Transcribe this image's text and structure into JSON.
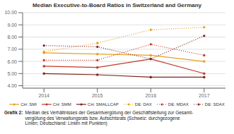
{
  "chart_data": {
    "type": "line",
    "title": "Median Executive-to-Board Ratios in Switzerland and Germany",
    "x": [
      2014,
      2015,
      2016,
      2017
    ],
    "xlim": [
      2013.6,
      2017.4
    ],
    "xticks": [
      2014,
      2015,
      2016,
      2017
    ],
    "series": [
      {
        "name": "CH: SMI",
        "color": "#E8A020",
        "line_style": "solid",
        "marker": "circle",
        "values": [
          6.7,
          6.6,
          6.5,
          6.0
        ]
      },
      {
        "name": "CH: SMM",
        "color": "#C0392B",
        "line_style": "solid",
        "marker": "circle",
        "values": [
          5.6,
          5.5,
          6.2,
          5.0
        ]
      },
      {
        "name": "CH: SMALLCAP",
        "color": "#7B241C",
        "line_style": "solid",
        "marker": "circle",
        "values": [
          5.0,
          4.9,
          4.7,
          4.7
        ]
      },
      {
        "name": "DE: DAX",
        "color": "#E8A020",
        "line_style": "dotted",
        "marker": "circle",
        "values": [
          6.8,
          7.5,
          8.6,
          8.8
        ]
      },
      {
        "name": "DE: MDAX",
        "color": "#C0392B",
        "line_style": "dotted",
        "marker": "circle",
        "values": [
          6.1,
          6.1,
          7.4,
          6.5
        ]
      },
      {
        "name": "DE: SDAX",
        "color": "#7B241C",
        "line_style": "dotted",
        "marker": "circle",
        "values": [
          7.3,
          7.2,
          6.2,
          8.1
        ]
      }
    ],
    "ylim": [
      3.8,
      10.0
    ],
    "yticks": [
      {
        "value": 4,
        "label": "4.00"
      },
      {
        "value": 5,
        "label": "5.00"
      },
      {
        "value": 6,
        "label": "6.00"
      },
      {
        "value": 7,
        "label": "7.00"
      },
      {
        "value": 8,
        "label": "8.00"
      },
      {
        "value": 9,
        "label": "9.00"
      },
      {
        "value": 10,
        "label": "10.00"
      }
    ],
    "grid": true,
    "legend": "bottom",
    "caption": {
      "label": "Grafik 2:",
      "text": "Median des Verhältnisses der Gesamtvergütung der Geschäftsleitung zur Gesamt-\nvergütung des Verwaltungsrats bzw. Aufsichtsrats (Schweiz: durchgezogene\nLinien; Deutschland: Linien mit Punkten)"
    }
  }
}
